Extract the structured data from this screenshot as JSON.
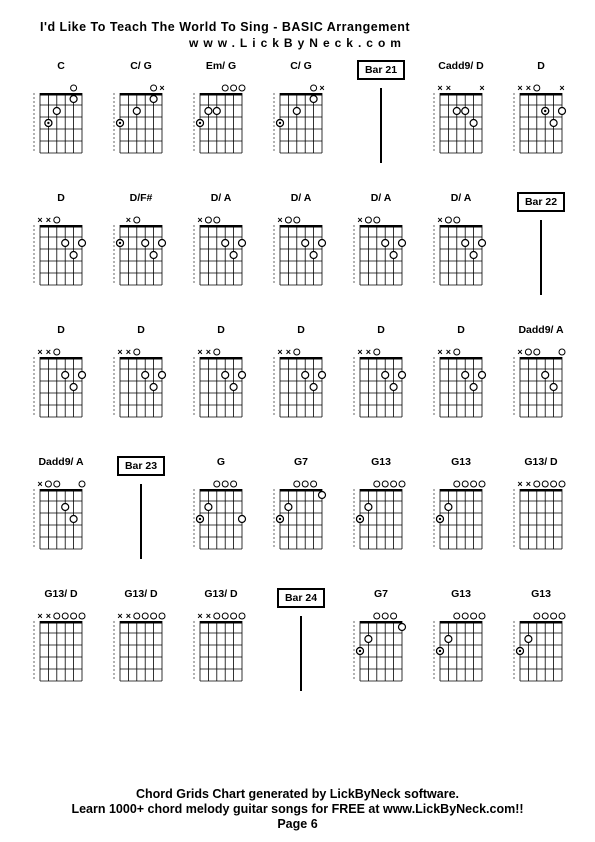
{
  "title": "I'd Like To Teach The World To Sing  - BASIC Arrangement",
  "url": "www.LickByNeck.com",
  "footer": {
    "line1": "Chord Grids Chart generated by LickByNeck software.",
    "line2": "Learn 1000+ chord melody guitar songs for FREE at www.LickByNeck.com!!",
    "page": "Page 6"
  },
  "strings": 6,
  "frets": 5,
  "colors": {
    "grid": "#000000",
    "dot": "#000000",
    "dot_fill": "#ffffff",
    "mute": "#000000"
  },
  "cells": [
    {
      "type": "chord",
      "name": "C",
      "open": [
        0,
        0,
        0,
        0,
        1,
        0
      ],
      "mute": [
        0,
        0,
        0,
        0,
        0,
        0
      ],
      "dots": [
        [
          5,
          3
        ],
        [
          4,
          2
        ],
        [
          2,
          1
        ]
      ],
      "bass": [
        [
          5,
          3
        ]
      ]
    },
    {
      "type": "chord",
      "name": "C/ G",
      "open": [
        0,
        0,
        0,
        0,
        1,
        0
      ],
      "mute": [
        0,
        0,
        0,
        0,
        0,
        1
      ],
      "dots": [
        [
          6,
          3
        ],
        [
          4,
          2
        ],
        [
          2,
          1
        ]
      ],
      "bass": [
        [
          6,
          3
        ]
      ]
    },
    {
      "type": "chord",
      "name": "Em/ G",
      "open": [
        0,
        0,
        0,
        1,
        1,
        1
      ],
      "mute": [
        0,
        0,
        0,
        0,
        0,
        0
      ],
      "dots": [
        [
          6,
          3
        ],
        [
          5,
          2
        ],
        [
          4,
          2
        ]
      ],
      "bass": [
        [
          6,
          3
        ]
      ]
    },
    {
      "type": "chord",
      "name": "C/ G",
      "open": [
        0,
        0,
        0,
        0,
        1,
        0
      ],
      "mute": [
        0,
        0,
        0,
        0,
        0,
        1
      ],
      "dots": [
        [
          6,
          3
        ],
        [
          4,
          2
        ],
        [
          2,
          1
        ]
      ],
      "bass": [
        [
          6,
          3
        ]
      ]
    },
    {
      "type": "bar",
      "label": "Bar 21"
    },
    {
      "type": "chord",
      "name": "Cadd9/ D",
      "open": [
        0,
        0,
        0,
        0,
        0,
        0
      ],
      "mute": [
        1,
        1,
        0,
        0,
        0,
        1
      ],
      "dots": [
        [
          4,
          2
        ],
        [
          3,
          2
        ],
        [
          2,
          3
        ]
      ],
      "bass": []
    },
    {
      "type": "chord",
      "name": "D",
      "open": [
        0,
        0,
        1,
        0,
        0,
        0
      ],
      "mute": [
        1,
        1,
        0,
        0,
        0,
        1
      ],
      "dots": [
        [
          3,
          2
        ],
        [
          2,
          3
        ],
        [
          1,
          2
        ]
      ],
      "bass": [
        [
          3,
          2
        ]
      ]
    },
    {
      "type": "chord",
      "name": "D",
      "open": [
        0,
        0,
        1,
        0,
        0,
        0
      ],
      "mute": [
        1,
        1,
        0,
        0,
        0,
        0
      ],
      "dots": [
        [
          3,
          2
        ],
        [
          2,
          3
        ],
        [
          1,
          2
        ]
      ],
      "bass": []
    },
    {
      "type": "chord",
      "name": "D/F#",
      "open": [
        0,
        0,
        1,
        0,
        0,
        0
      ],
      "mute": [
        0,
        1,
        0,
        0,
        0,
        0
      ],
      "dots": [
        [
          6,
          2
        ],
        [
          3,
          2
        ],
        [
          2,
          3
        ],
        [
          1,
          2
        ]
      ],
      "bass": [
        [
          6,
          2
        ]
      ]
    },
    {
      "type": "chord",
      "name": "D/ A",
      "open": [
        0,
        1,
        1,
        0,
        0,
        0
      ],
      "mute": [
        1,
        0,
        0,
        0,
        0,
        0
      ],
      "dots": [
        [
          3,
          2
        ],
        [
          2,
          3
        ],
        [
          1,
          2
        ]
      ],
      "bass": []
    },
    {
      "type": "chord",
      "name": "D/ A",
      "open": [
        0,
        1,
        1,
        0,
        0,
        0
      ],
      "mute": [
        1,
        0,
        0,
        0,
        0,
        0
      ],
      "dots": [
        [
          3,
          2
        ],
        [
          2,
          3
        ],
        [
          1,
          2
        ]
      ],
      "bass": []
    },
    {
      "type": "chord",
      "name": "D/ A",
      "open": [
        0,
        1,
        1,
        0,
        0,
        0
      ],
      "mute": [
        1,
        0,
        0,
        0,
        0,
        0
      ],
      "dots": [
        [
          3,
          2
        ],
        [
          2,
          3
        ],
        [
          1,
          2
        ]
      ],
      "bass": []
    },
    {
      "type": "chord",
      "name": "D/ A",
      "open": [
        0,
        1,
        1,
        0,
        0,
        0
      ],
      "mute": [
        1,
        0,
        0,
        0,
        0,
        0
      ],
      "dots": [
        [
          3,
          2
        ],
        [
          2,
          3
        ],
        [
          1,
          2
        ]
      ],
      "bass": []
    },
    {
      "type": "bar",
      "label": "Bar 22"
    },
    {
      "type": "chord",
      "name": "D",
      "open": [
        0,
        0,
        1,
        0,
        0,
        0
      ],
      "mute": [
        1,
        1,
        0,
        0,
        0,
        0
      ],
      "dots": [
        [
          3,
          2
        ],
        [
          2,
          3
        ],
        [
          1,
          2
        ]
      ],
      "bass": []
    },
    {
      "type": "chord",
      "name": "D",
      "open": [
        0,
        0,
        1,
        0,
        0,
        0
      ],
      "mute": [
        1,
        1,
        0,
        0,
        0,
        0
      ],
      "dots": [
        [
          3,
          2
        ],
        [
          2,
          3
        ],
        [
          1,
          2
        ]
      ],
      "bass": []
    },
    {
      "type": "chord",
      "name": "D",
      "open": [
        0,
        0,
        1,
        0,
        0,
        0
      ],
      "mute": [
        1,
        1,
        0,
        0,
        0,
        0
      ],
      "dots": [
        [
          3,
          2
        ],
        [
          2,
          3
        ],
        [
          1,
          2
        ]
      ],
      "bass": []
    },
    {
      "type": "chord",
      "name": "D",
      "open": [
        0,
        0,
        1,
        0,
        0,
        0
      ],
      "mute": [
        1,
        1,
        0,
        0,
        0,
        0
      ],
      "dots": [
        [
          3,
          2
        ],
        [
          2,
          3
        ],
        [
          1,
          2
        ]
      ],
      "bass": []
    },
    {
      "type": "chord",
      "name": "D",
      "open": [
        0,
        0,
        1,
        0,
        0,
        0
      ],
      "mute": [
        1,
        1,
        0,
        0,
        0,
        0
      ],
      "dots": [
        [
          3,
          2
        ],
        [
          2,
          3
        ],
        [
          1,
          2
        ]
      ],
      "bass": []
    },
    {
      "type": "chord",
      "name": "D",
      "open": [
        0,
        0,
        1,
        0,
        0,
        0
      ],
      "mute": [
        1,
        1,
        0,
        0,
        0,
        0
      ],
      "dots": [
        [
          3,
          2
        ],
        [
          2,
          3
        ],
        [
          1,
          2
        ]
      ],
      "bass": []
    },
    {
      "type": "chord",
      "name": "Dadd9/ A",
      "open": [
        0,
        1,
        1,
        0,
        0,
        1
      ],
      "mute": [
        1,
        0,
        0,
        0,
        0,
        0
      ],
      "dots": [
        [
          3,
          2
        ],
        [
          2,
          3
        ]
      ],
      "bass": []
    },
    {
      "type": "chord",
      "name": "Dadd9/ A",
      "open": [
        0,
        1,
        1,
        0,
        0,
        1
      ],
      "mute": [
        1,
        0,
        0,
        0,
        0,
        0
      ],
      "dots": [
        [
          3,
          2
        ],
        [
          2,
          3
        ]
      ],
      "bass": []
    },
    {
      "type": "bar",
      "label": "Bar 23"
    },
    {
      "type": "chord",
      "name": "G",
      "open": [
        0,
        0,
        1,
        1,
        1,
        0
      ],
      "mute": [
        0,
        0,
        0,
        0,
        0,
        0
      ],
      "dots": [
        [
          6,
          3
        ],
        [
          5,
          2
        ],
        [
          1,
          3
        ]
      ],
      "bass": [
        [
          6,
          3
        ]
      ]
    },
    {
      "type": "chord",
      "name": "G7",
      "open": [
        0,
        0,
        1,
        1,
        1,
        0
      ],
      "mute": [
        0,
        0,
        0,
        0,
        0,
        0
      ],
      "dots": [
        [
          6,
          3
        ],
        [
          5,
          2
        ],
        [
          1,
          1
        ]
      ],
      "bass": [
        [
          6,
          3
        ]
      ]
    },
    {
      "type": "chord",
      "name": "G13",
      "open": [
        0,
        0,
        1,
        1,
        1,
        1
      ],
      "mute": [
        0,
        0,
        0,
        0,
        0,
        0
      ],
      "dots": [
        [
          6,
          3
        ],
        [
          5,
          2
        ]
      ],
      "bass": [
        [
          6,
          3
        ]
      ]
    },
    {
      "type": "chord",
      "name": "G13",
      "open": [
        0,
        0,
        1,
        1,
        1,
        1
      ],
      "mute": [
        0,
        0,
        0,
        0,
        0,
        0
      ],
      "dots": [
        [
          6,
          3
        ],
        [
          5,
          2
        ]
      ],
      "bass": [
        [
          6,
          3
        ]
      ]
    },
    {
      "type": "chord",
      "name": "G13/ D",
      "open": [
        0,
        0,
        1,
        1,
        1,
        1
      ],
      "mute": [
        1,
        1,
        0,
        0,
        0,
        0
      ],
      "dots": [],
      "bass": []
    },
    {
      "type": "chord",
      "name": "G13/ D",
      "open": [
        0,
        0,
        1,
        1,
        1,
        1
      ],
      "mute": [
        1,
        1,
        0,
        0,
        0,
        0
      ],
      "dots": [],
      "bass": []
    },
    {
      "type": "chord",
      "name": "G13/ D",
      "open": [
        0,
        0,
        1,
        1,
        1,
        1
      ],
      "mute": [
        1,
        1,
        0,
        0,
        0,
        0
      ],
      "dots": [],
      "bass": []
    },
    {
      "type": "chord",
      "name": "G13/ D",
      "open": [
        0,
        0,
        1,
        1,
        1,
        1
      ],
      "mute": [
        1,
        1,
        0,
        0,
        0,
        0
      ],
      "dots": [],
      "bass": []
    },
    {
      "type": "bar",
      "label": "Bar 24"
    },
    {
      "type": "chord",
      "name": "G7",
      "open": [
        0,
        0,
        1,
        1,
        1,
        0
      ],
      "mute": [
        0,
        0,
        0,
        0,
        0,
        0
      ],
      "dots": [
        [
          6,
          3
        ],
        [
          5,
          2
        ],
        [
          1,
          1
        ]
      ],
      "bass": [
        [
          6,
          3
        ]
      ]
    },
    {
      "type": "chord",
      "name": "G13",
      "open": [
        0,
        0,
        1,
        1,
        1,
        1
      ],
      "mute": [
        0,
        0,
        0,
        0,
        0,
        0
      ],
      "dots": [
        [
          6,
          3
        ],
        [
          5,
          2
        ]
      ],
      "bass": [
        [
          6,
          3
        ]
      ]
    },
    {
      "type": "chord",
      "name": "G13",
      "open": [
        0,
        0,
        1,
        1,
        1,
        1
      ],
      "mute": [
        0,
        0,
        0,
        0,
        0,
        0
      ],
      "dots": [
        [
          6,
          3
        ],
        [
          5,
          2
        ]
      ],
      "bass": [
        [
          6,
          3
        ]
      ]
    }
  ]
}
